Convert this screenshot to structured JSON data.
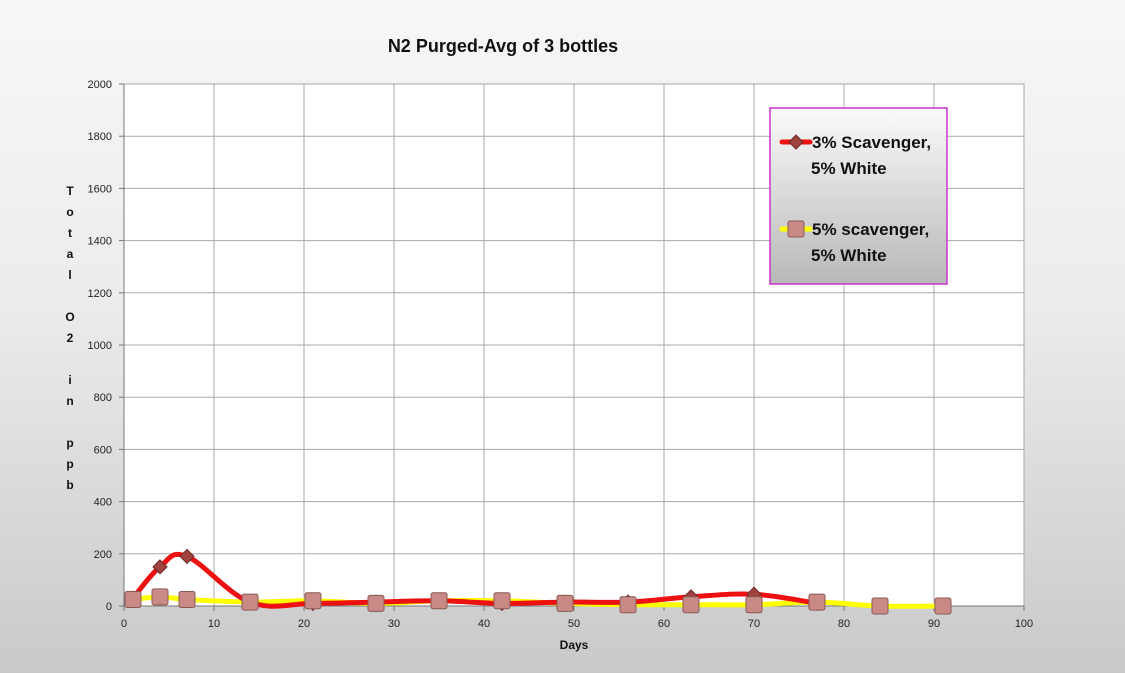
{
  "chart_data": {
    "type": "line",
    "title": "N2 Purged-Avg of 3 bottles",
    "xlabel": "Days",
    "ylabel": "Total O2 in ppb",
    "xlim": [
      0,
      100
    ],
    "ylim": [
      0,
      2000
    ],
    "x_ticks": [
      "0",
      "10",
      "20",
      "30",
      "40",
      "50",
      "60",
      "70",
      "80",
      "90",
      "100"
    ],
    "y_ticks": [
      "0",
      "200",
      "400",
      "600",
      "800",
      "1000",
      "1200",
      "1400",
      "1600",
      "1800",
      "2000"
    ],
    "grid": true,
    "legend_position": "top-right",
    "legend_border_color": "#cc33cc",
    "series": [
      {
        "name": "3% Scavenger, 5% White",
        "legend_lines": [
          "3% Scavenger,",
          "5% White"
        ],
        "color": "#ee1111",
        "marker": "diamond",
        "marker_color": "#a0423e",
        "x": [
          1,
          4,
          7,
          14,
          21,
          28,
          35,
          42,
          49,
          56,
          63,
          70,
          77
        ],
        "y": [
          30,
          150,
          190,
          15,
          10,
          15,
          20,
          10,
          15,
          15,
          35,
          45,
          10
        ]
      },
      {
        "name": "5% scavenger, 5% White",
        "legend_lines": [
          "5% scavenger,",
          "5% White"
        ],
        "color": "#ffff00",
        "marker": "square",
        "marker_color": "#c98a86",
        "x": [
          1,
          4,
          7,
          14,
          21,
          28,
          35,
          42,
          49,
          56,
          63,
          70,
          77,
          84,
          91
        ],
        "y": [
          25,
          35,
          25,
          15,
          20,
          10,
          20,
          20,
          10,
          5,
          5,
          5,
          15,
          0,
          0
        ]
      }
    ]
  }
}
